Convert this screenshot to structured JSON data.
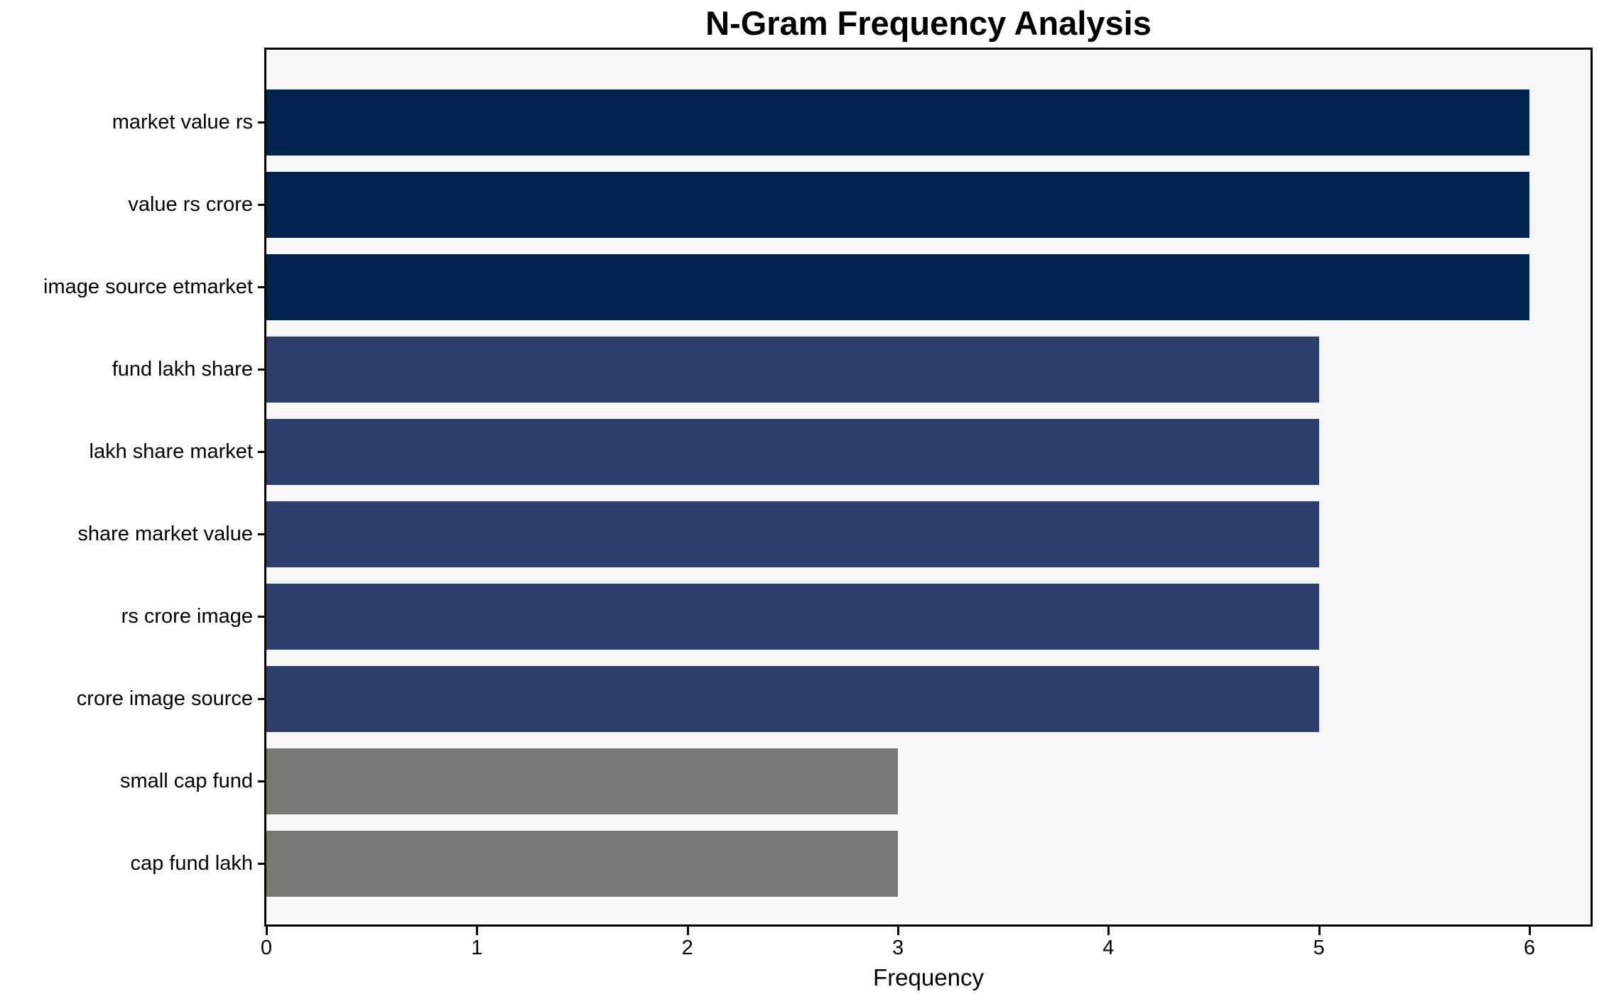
{
  "title": "N-Gram Frequency Analysis",
  "chart_data": {
    "type": "bar",
    "orientation": "horizontal",
    "title": "N-Gram Frequency Analysis",
    "xlabel": "Frequency",
    "ylabel": "",
    "categories": [
      "market value rs",
      "value rs crore",
      "image source etmarket",
      "fund lakh share",
      "lakh share market",
      "share market value",
      "rs crore image",
      "crore image source",
      "small cap fund",
      "cap fund lakh"
    ],
    "values": [
      6,
      6,
      6,
      5,
      5,
      5,
      5,
      5,
      3,
      3
    ],
    "bar_colors": [
      "#03244e",
      "#03244e",
      "#03244e",
      "#2c3e6b",
      "#2c3e6b",
      "#2c3e6b",
      "#2c3e6b",
      "#2c3e6b",
      "#7a7973",
      "#7a7973"
    ],
    "x_ticks": [
      0,
      1,
      2,
      3,
      4,
      5,
      6
    ],
    "x_tick_labels": [
      "0",
      "1",
      "2",
      "3",
      "4",
      "5",
      "6"
    ],
    "xlim": [
      0,
      6.29
    ],
    "grid": false,
    "legend": null,
    "plot_background": "#f7f7f6",
    "figure_background": "#ffffff",
    "spine_color": "#000000"
  }
}
